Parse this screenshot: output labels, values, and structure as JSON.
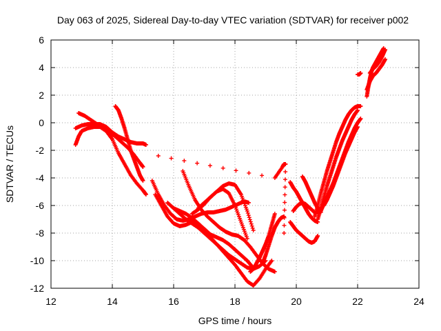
{
  "chart_data": {
    "type": "scatter",
    "title": "Day 063 of 2025, Sidereal Day-to-day VTEC variation (SDTVAR) for receiver p002",
    "xlabel": "GPS time / hours",
    "ylabel": "SDTVAR / TECUs",
    "xlim": [
      12,
      24
    ],
    "ylim": [
      -12,
      6
    ],
    "xticks": [
      "12",
      "14",
      "16",
      "18",
      "20",
      "22",
      "24"
    ],
    "yticks": [
      "-12",
      "-10",
      "-8",
      "-6",
      "-4",
      "-2",
      "0",
      "2",
      "4",
      "6"
    ],
    "grid": true,
    "marker": "+",
    "color": "#ff0000",
    "series": [
      {
        "x": [
          12.8,
          12.9,
          13.0,
          13.2,
          13.4,
          13.6,
          13.8,
          14.0,
          14.2,
          14.4,
          14.6,
          14.8,
          15.0,
          15.1
        ],
        "y": [
          -1.6,
          -1.0,
          -0.6,
          -0.4,
          -0.3,
          -0.3,
          -0.6,
          -1.2,
          -2.2,
          -3.0,
          -3.8,
          -4.4,
          -4.9,
          -5.2
        ]
      },
      {
        "x": [
          12.8,
          13.0,
          13.2,
          13.4,
          13.6,
          13.8,
          14.0,
          14.2,
          14.4,
          14.6,
          14.8,
          15.0,
          15.1
        ],
        "y": [
          -0.4,
          -0.2,
          -0.1,
          -0.1,
          -0.1,
          -0.3,
          -0.7,
          -1.0,
          -1.2,
          -1.4,
          -1.5,
          -1.5,
          -1.6
        ]
      },
      {
        "x": [
          12.9,
          13.1,
          13.3,
          13.5,
          13.7,
          13.9,
          14.1,
          14.3,
          14.5,
          14.7,
          14.9,
          15.0
        ],
        "y": [
          0.7,
          0.5,
          0.2,
          -0.1,
          -0.4,
          -0.7,
          -1.0,
          -1.4,
          -1.8,
          -2.3,
          -2.9,
          -3.2
        ]
      },
      {
        "x": [
          14.1,
          14.2,
          14.3,
          14.4,
          14.5,
          14.6,
          14.7,
          14.8,
          14.9,
          15.0
        ],
        "y": [
          1.2,
          0.9,
          0.3,
          -0.4,
          -1.2,
          -2.0,
          -2.6,
          -3.2,
          -3.8,
          -4.2
        ]
      },
      {
        "x": [
          15.3,
          15.5,
          15.7,
          15.9,
          16.1,
          16.3,
          16.5,
          16.7,
          16.9,
          17.1,
          17.3,
          17.5,
          17.7,
          17.9,
          18.1,
          18.3,
          18.45
        ],
        "y": [
          -4.2,
          -5.2,
          -6.0,
          -6.6,
          -7.0,
          -7.1,
          -7.0,
          -6.8,
          -6.6,
          -6.5,
          -6.5,
          -6.4,
          -6.3,
          -6.1,
          -5.9,
          -5.7,
          -5.8
        ]
      },
      {
        "x": [
          15.4,
          15.6,
          15.8,
          16.0,
          16.2,
          16.4,
          16.6,
          16.8,
          17.0,
          17.2,
          17.4,
          17.6,
          17.8,
          18.0,
          18.2,
          18.4,
          18.55
        ],
        "y": [
          -5.2,
          -6.0,
          -6.8,
          -7.3,
          -7.5,
          -7.4,
          -7.2,
          -7.3,
          -7.7,
          -8.1,
          -8.3,
          -8.5,
          -8.8,
          -9.2,
          -9.6,
          -10.0,
          -10.4
        ]
      },
      {
        "x": [
          15.8,
          16.0,
          16.2,
          16.4,
          16.6,
          16.8,
          17.0,
          17.2,
          17.4,
          17.6,
          17.8,
          18.0,
          18.2,
          18.4,
          18.6,
          18.8,
          19.0
        ],
        "y": [
          -5.8,
          -6.2,
          -6.4,
          -6.6,
          -6.9,
          -7.3,
          -7.8,
          -8.3,
          -8.8,
          -9.2,
          -9.6,
          -9.9,
          -10.2,
          -10.5,
          -10.6,
          -10.4,
          -10.0
        ]
      },
      {
        "x": [
          16.0,
          16.2,
          16.4,
          16.6,
          16.8,
          17.0,
          17.2,
          17.4,
          17.6,
          17.8,
          18.0,
          18.2,
          18.4,
          18.6,
          18.8,
          19.0,
          19.2
        ],
        "y": [
          -6.2,
          -6.6,
          -7.0,
          -7.3,
          -7.6,
          -8.0,
          -8.4,
          -8.8,
          -9.3,
          -9.8,
          -10.3,
          -10.9,
          -11.5,
          -11.8,
          -11.3,
          -10.6,
          -10.0
        ]
      },
      {
        "x": [
          16.3,
          16.5,
          16.7,
          16.9,
          17.1,
          17.3,
          17.5,
          17.7,
          17.9,
          18.1,
          18.3,
          18.5,
          18.7,
          18.9,
          19.1,
          19.3
        ],
        "y": [
          -3.5,
          -4.6,
          -5.6,
          -6.3,
          -6.8,
          -7.2,
          -7.6,
          -7.9,
          -8.1,
          -8.2,
          -8.5,
          -9.0,
          -9.6,
          -10.2,
          -10.6,
          -10.8
        ]
      },
      {
        "x": [
          16.6,
          16.8,
          17.0,
          17.2,
          17.4,
          17.6,
          17.8,
          18.0,
          18.2,
          18.4
        ],
        "y": [
          -6.6,
          -6.3,
          -5.9,
          -5.4,
          -5.0,
          -4.8,
          -5.1,
          -6.0,
          -7.2,
          -8.4
        ]
      },
      {
        "x": [
          16.8,
          17.0,
          17.2,
          17.4,
          17.6,
          17.8,
          18.0,
          18.2,
          18.4,
          18.6
        ],
        "y": [
          -6.2,
          -5.8,
          -5.4,
          -5.0,
          -4.6,
          -4.4,
          -4.5,
          -5.2,
          -6.4,
          -7.8
        ]
      },
      {
        "x": [
          18.5,
          18.6,
          18.7,
          18.8,
          18.9,
          19.0,
          19.1,
          19.2,
          19.3
        ],
        "y": [
          -10.8,
          -10.6,
          -10.2,
          -9.8,
          -9.3,
          -8.8,
          -8.2,
          -7.4,
          -6.6
        ]
      },
      {
        "x": [
          18.9,
          19.0,
          19.1,
          19.2,
          19.3,
          19.4,
          19.5,
          19.6
        ],
        "y": [
          -10.2,
          -9.6,
          -8.9,
          -8.2,
          -7.6,
          -7.2,
          -6.9,
          -6.8
        ]
      },
      {
        "x": [
          15.5,
          19.3,
          19.55,
          19.6,
          19.65,
          19.6
        ],
        "y": [
          -2.4,
          -4.0,
          -3.2,
          -3.0,
          -3.0,
          -8.0
        ]
      },
      {
        "x": [
          19.8,
          19.9,
          20.0,
          20.1,
          20.2,
          20.3,
          20.4,
          20.5,
          20.6,
          20.7
        ],
        "y": [
          -7.2,
          -7.5,
          -7.8,
          -8.0,
          -8.2,
          -8.4,
          -8.6,
          -8.7,
          -8.6,
          -8.2
        ]
      },
      {
        "x": [
          19.9,
          20.0,
          20.1,
          20.2,
          20.3,
          20.4,
          20.5,
          20.6,
          20.7,
          20.8
        ],
        "y": [
          -6.4,
          -6.1,
          -5.9,
          -5.8,
          -5.9,
          -6.1,
          -6.3,
          -6.5,
          -6.5,
          -6.2
        ]
      },
      {
        "x": [
          19.8,
          19.9,
          20.0,
          20.1,
          20.2,
          20.3,
          20.4,
          20.5,
          20.6,
          20.7
        ],
        "y": [
          -4.3,
          -4.7,
          -5.0,
          -5.4,
          -5.8,
          -6.2,
          -6.6,
          -6.9,
          -7.1,
          -7.2
        ]
      },
      {
        "x": [
          20.2,
          20.3,
          20.4,
          20.5,
          20.6,
          20.7,
          20.8
        ],
        "y": [
          -3.9,
          -4.3,
          -4.8,
          -5.3,
          -5.8,
          -6.2,
          -6.5
        ]
      },
      {
        "x": [
          20.7,
          20.8,
          20.9,
          21.0,
          21.1,
          21.2,
          21.3,
          21.4,
          21.5,
          21.6,
          21.7,
          21.8,
          21.9,
          22.0
        ],
        "y": [
          -7.0,
          -6.2,
          -5.4,
          -4.6,
          -3.9,
          -3.2,
          -2.5,
          -1.9,
          -1.3,
          -0.8,
          -0.3,
          0.2,
          0.6,
          0.9
        ]
      },
      {
        "x": [
          20.6,
          20.7,
          20.8,
          20.9,
          21.0,
          21.1,
          21.2,
          21.3,
          21.4,
          21.5,
          21.6,
          21.7,
          21.8,
          21.9,
          22.0,
          22.1
        ],
        "y": [
          -6.8,
          -6.0,
          -5.1,
          -4.3,
          -3.5,
          -2.8,
          -2.1,
          -1.4,
          -0.8,
          -0.3,
          0.2,
          0.6,
          0.9,
          1.1,
          1.2,
          1.2
        ]
      },
      {
        "x": [
          20.8,
          20.9,
          21.0,
          21.1,
          21.2,
          21.3,
          21.4,
          21.5,
          21.6,
          21.7,
          21.8,
          21.9,
          22.0,
          22.1
        ],
        "y": [
          -6.4,
          -5.9,
          -5.4,
          -4.9,
          -4.4,
          -3.8,
          -3.2,
          -2.6,
          -2.0,
          -1.4,
          -0.9,
          -0.4,
          0.0,
          0.3
        ]
      },
      {
        "x": [
          20.9,
          21.0,
          21.1,
          21.2,
          21.3,
          21.4,
          21.5,
          21.6,
          21.7,
          21.8,
          21.9,
          22.0
        ],
        "y": [
          -6.0,
          -5.6,
          -5.1,
          -4.6,
          -4.0,
          -3.4,
          -2.8,
          -2.2,
          -1.7,
          -1.2,
          -0.7,
          -0.3
        ]
      },
      {
        "x": [
          22.0,
          22.05,
          22.1
        ],
        "y": [
          3.5,
          3.5,
          3.6
        ]
      },
      {
        "x": [
          22.3,
          22.35,
          22.4,
          22.45,
          22.5,
          22.55,
          22.6,
          22.65,
          22.7,
          22.75,
          22.8,
          22.85
        ],
        "y": [
          1.9,
          2.6,
          3.2,
          3.7,
          4.0,
          4.2,
          4.4,
          4.6,
          4.8,
          5.0,
          5.2,
          5.4
        ]
      },
      {
        "x": [
          22.3,
          22.4,
          22.5,
          22.6,
          22.7,
          22.8,
          22.9
        ],
        "y": [
          2.4,
          3.0,
          3.4,
          3.6,
          3.9,
          4.2,
          4.6
        ]
      },
      {
        "x": [
          22.4,
          22.5,
          22.6,
          22.7,
          22.8,
          22.9
        ],
        "y": [
          3.6,
          3.9,
          4.1,
          4.4,
          4.8,
          5.3
        ]
      }
    ]
  }
}
